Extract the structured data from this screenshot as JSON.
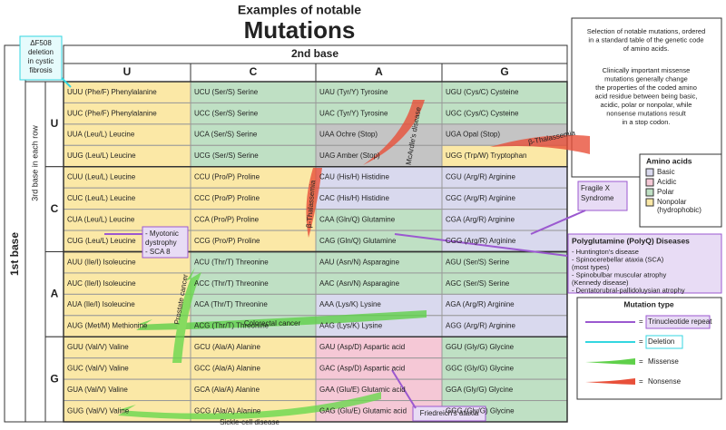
{
  "title": "Examples of notable",
  "heading": "Mutations",
  "second_base": "2nd base",
  "first_base": "1st base",
  "third_base": "3rd base in each row",
  "columns": [
    "U",
    "C",
    "A",
    "G"
  ],
  "row_groups": [
    "U",
    "C",
    "A",
    "G"
  ],
  "table": {
    "rows": [
      [
        {
          "text": "UUU (Phe/F) Phenylalanine",
          "color": "#fbe8a6"
        },
        {
          "text": "UCU (Ser/S) Serine",
          "color": "#bfe0c4"
        },
        {
          "text": "UAU (Tyr/Y) Tyrosine",
          "color": "#bfe0c4"
        },
        {
          "text": "UGU (Cys/C) Cysteine",
          "color": "#bfe0c4"
        }
      ],
      [
        {
          "text": "UUC (Phe/F) Phenylalanine",
          "color": "#fbe8a6"
        },
        {
          "text": "UCC (Ser/S) Serine",
          "color": "#bfe0c4"
        },
        {
          "text": "UAC (Tyr/Y) Tyrosine",
          "color": "#bfe0c4"
        },
        {
          "text": "UGC (Cys/C) Cysteine",
          "color": "#bfe0c4"
        }
      ],
      [
        {
          "text": "UUA (Leu/L) Leucine",
          "color": "#fbe8a6"
        },
        {
          "text": "UCA (Ser/S) Serine",
          "color": "#bfe0c4"
        },
        {
          "text": "UAA Ochre (Stop)",
          "color": "#c4c4c4"
        },
        {
          "text": "UGA Opal (Stop)",
          "color": "#c4c4c4"
        }
      ],
      [
        {
          "text": "UUG (Leu/L) Leucine",
          "color": "#fbe8a6"
        },
        {
          "text": "UCG (Ser/S) Serine",
          "color": "#bfe0c4"
        },
        {
          "text": "UAG Amber (Stop)",
          "color": "#c4c4c4"
        },
        {
          "text": "UGG (Trp/W) Tryptophan",
          "color": "#fbe8a6"
        }
      ],
      [
        {
          "text": "CUU (Leu/L) Leucine",
          "color": "#fbe8a6"
        },
        {
          "text": "CCU (Pro/P) Proline",
          "color": "#fbe8a6"
        },
        {
          "text": "CAU (His/H) Histidine",
          "color": "#d9d9ee"
        },
        {
          "text": "CGU (Arg/R) Arginine",
          "color": "#d9d9ee"
        }
      ],
      [
        {
          "text": "CUC (Leu/L) Leucine",
          "color": "#fbe8a6"
        },
        {
          "text": "CCC (Pro/P) Proline",
          "color": "#fbe8a6"
        },
        {
          "text": "CAC (His/H) Histidine",
          "color": "#d9d9ee"
        },
        {
          "text": "CGC (Arg/R) Arginine",
          "color": "#d9d9ee"
        }
      ],
      [
        {
          "text": "CUA (Leu/L) Leucine",
          "color": "#fbe8a6"
        },
        {
          "text": "CCA (Pro/P) Proline",
          "color": "#fbe8a6"
        },
        {
          "text": "CAA (Gln/Q) Glutamine",
          "color": "#bfe0c4"
        },
        {
          "text": "CGA (Arg/R) Arginine",
          "color": "#d9d9ee"
        }
      ],
      [
        {
          "text": "CUG (Leu/L) Leucine",
          "color": "#fbe8a6"
        },
        {
          "text": "CCG (Pro/P) Proline",
          "color": "#fbe8a6"
        },
        {
          "text": "CAG (Gln/Q) Glutamine",
          "color": "#bfe0c4"
        },
        {
          "text": "CGG (Arg/R) Arginine",
          "color": "#d9d9ee"
        }
      ],
      [
        {
          "text": "AUU (Ile/I) Isoleucine",
          "color": "#fbe8a6"
        },
        {
          "text": "ACU (Thr/T) Threonine",
          "color": "#bfe0c4"
        },
        {
          "text": "AAU (Asn/N) Asparagine",
          "color": "#bfe0c4"
        },
        {
          "text": "AGU (Ser/S) Serine",
          "color": "#bfe0c4"
        }
      ],
      [
        {
          "text": "AUC (Ile/I) Isoleucine",
          "color": "#fbe8a6"
        },
        {
          "text": "ACC (Thr/T) Threonine",
          "color": "#bfe0c4"
        },
        {
          "text": "AAC (Asn/N) Asparagine",
          "color": "#bfe0c4"
        },
        {
          "text": "AGC (Ser/S) Serine",
          "color": "#bfe0c4"
        }
      ],
      [
        {
          "text": "AUA (Ile/I) Isoleucine",
          "color": "#fbe8a6"
        },
        {
          "text": "ACA (Thr/T) Threonine",
          "color": "#bfe0c4"
        },
        {
          "text": "AAA (Lys/K) Lysine",
          "color": "#d9d9ee"
        },
        {
          "text": "AGA (Arg/R) Arginine",
          "color": "#d9d9ee"
        }
      ],
      [
        {
          "text": "AUG (Met/M) Methionine",
          "color": "#fbe8a6"
        },
        {
          "text": "ACG (Thr/T) Threonine",
          "color": "#bfe0c4"
        },
        {
          "text": "AAG (Lys/K) Lysine",
          "color": "#d9d9ee"
        },
        {
          "text": "AGG (Arg/R) Arginine",
          "color": "#d9d9ee"
        }
      ],
      [
        {
          "text": "GUU (Val/V) Valine",
          "color": "#fbe8a6"
        },
        {
          "text": "GCU (Ala/A) Alanine",
          "color": "#fbe8a6"
        },
        {
          "text": "GAU (Asp/D) Aspartic acid",
          "color": "#f5c8d6"
        },
        {
          "text": "GGU (Gly/G) Glycine",
          "color": "#bfe0c4"
        }
      ],
      [
        {
          "text": "GUC (Val/V) Valine",
          "color": "#fbe8a6"
        },
        {
          "text": "GCC (Ala/A) Alanine",
          "color": "#fbe8a6"
        },
        {
          "text": "GAC (Asp/D) Aspartic acid",
          "color": "#f5c8d6"
        },
        {
          "text": "GGC (Gly/G) Glycine",
          "color": "#bfe0c4"
        }
      ],
      [
        {
          "text": "GUA (Val/V) Valine",
          "color": "#fbe8a6"
        },
        {
          "text": "GCA (Ala/A) Alanine",
          "color": "#fbe8a6"
        },
        {
          "text": "GAA (Glu/E) Glutamic acid",
          "color": "#f5c8d6"
        },
        {
          "text": "GGA (Gly/G) Glycine",
          "color": "#bfe0c4"
        }
      ],
      [
        {
          "text": "GUG (Val/V) Valine",
          "color": "#fbe8a6"
        },
        {
          "text": "GCG (Ala/A) Alanine",
          "color": "#fbe8a6"
        },
        {
          "text": "GAG (Glu/E) Glutamic acid",
          "color": "#f5c8d6"
        },
        {
          "text": "GGG (Gly/G) Glycine",
          "color": "#bfe0c4"
        }
      ]
    ]
  },
  "description": {
    "para1": [
      "Selection of notable mutations, ordered",
      "in a standard table of the genetic code",
      "of amino acids."
    ],
    "para2": [
      "Clinically important missense",
      "mutations generally change",
      "the properties of the coded amino",
      "acid residue between being basic,",
      "acidic, polar or nonpolar, while",
      "nonsense mutations result",
      "in a stop codon."
    ]
  },
  "amino_acids": {
    "title": "Amino acids",
    "items": [
      {
        "lines": [
          "Basic"
        ],
        "color": "#d9d9ee"
      },
      {
        "lines": [
          "Acidic"
        ],
        "color": "#f5c8d6"
      },
      {
        "lines": [
          "Polar"
        ],
        "color": "#bfe0c4"
      },
      {
        "lines": [
          "Nonpolar",
          "(hydrophobic)"
        ],
        "color": "#fbe8a6"
      }
    ]
  },
  "polyq": {
    "title": "Polyglutamine (PolyQ) Diseases",
    "items": [
      [
        "- Huntington's disease"
      ],
      [
        "- Spinocerebellar ataxia (SCA)",
        "  (most types)"
      ],
      [
        "- Spinobulbar muscular atrophy",
        "  (Kennedy disease)"
      ],
      [
        "- Dentatorubral-pallidoluysian atrophy"
      ]
    ]
  },
  "mutation_type": {
    "title": "Mutation type",
    "equals": "=",
    "items": [
      "Trinucleotide repeat",
      "Deletion",
      "Missense",
      "Nonsense"
    ]
  },
  "annotations": {
    "cystic": [
      "ΔF508",
      "deletion",
      "in cystic",
      "fibrosis"
    ],
    "myotonic": [
      "- Myotonic",
      "  dystrophy",
      "- SCA 8"
    ],
    "fragile_x": [
      "Fragile X",
      "Syndrome"
    ],
    "colorectal": "Colorectal cancer",
    "prostate": "Prostate cancer",
    "sickle": "Sickle-cell disease",
    "friedreich": "Friedreich's ataxia",
    "thal1": "β-Thalassemia",
    "thal2": "β-Thalassemia",
    "mcardle": "McArdle's disease"
  }
}
